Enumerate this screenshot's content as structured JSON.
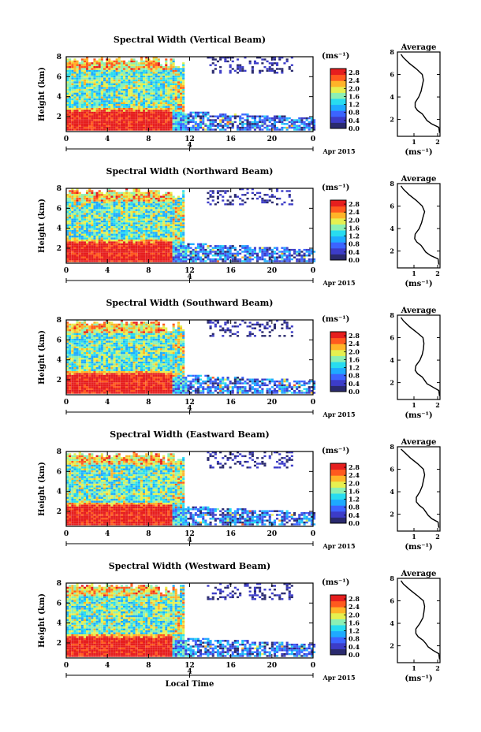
{
  "chart_data": [
    {
      "type": "heatmap",
      "title": "Spectral Width (Vertical Beam)",
      "ylabel": "Height (km)",
      "yticks": [
        "2",
        "4",
        "6",
        "8"
      ],
      "ylim": [
        0.5,
        8
      ],
      "xticks": [
        "0",
        "4",
        "8",
        "12",
        "16",
        "20",
        "0"
      ],
      "xlim": [
        0,
        24
      ],
      "date_tick": "4",
      "date_label": "Apr 2015",
      "colorbar_label": "(ms⁻¹)",
      "colorbar_ticks": [
        "0.0",
        "0.4",
        "0.8",
        "1.2",
        "1.6",
        "2.0",
        "2.4",
        "2.8"
      ],
      "colorbar_range": [
        0.0,
        3.0
      ],
      "colors": [
        "#2a2a6e",
        "#3c3cc8",
        "#3c64ff",
        "#1eaaff",
        "#28dcf0",
        "#8cf0b4",
        "#e6f050",
        "#ffb428",
        "#ff5a1e",
        "#e61e1e"
      ],
      "average_profile": {
        "title": "Average",
        "xlabel": "(ms⁻¹)",
        "xticks": [
          "1",
          "2"
        ],
        "xlim": [
          0.3,
          2.1
        ],
        "yticks": [
          "2",
          "4",
          "6",
          "8"
        ],
        "ylim": [
          0.5,
          8
        ],
        "height": [
          0.8,
          1.3,
          1.6,
          1.9,
          2.2,
          2.5,
          2.8,
          3.1,
          3.5,
          4.0,
          4.5,
          5.0,
          5.5,
          6.0,
          6.5,
          7.0,
          7.5,
          7.8
        ],
        "width": [
          2.08,
          2.05,
          1.75,
          1.55,
          1.45,
          1.35,
          1.15,
          1.05,
          1.05,
          1.2,
          1.3,
          1.35,
          1.4,
          1.35,
          1.1,
          0.8,
          0.55,
          0.45
        ]
      }
    },
    {
      "type": "heatmap",
      "title": "Spectral Width (Northward Beam)",
      "ylabel": "Height (km)",
      "yticks": [
        "2",
        "4",
        "6",
        "8"
      ],
      "ylim": [
        0.5,
        8
      ],
      "xticks": [
        "0",
        "4",
        "8",
        "12",
        "16",
        "20",
        "0"
      ],
      "xlim": [
        0,
        24
      ],
      "date_tick": "4",
      "date_label": "Apr 2015",
      "colorbar_label": "(ms⁻¹)",
      "colorbar_ticks": [
        "0.0",
        "0.4",
        "0.8",
        "1.2",
        "1.6",
        "2.0",
        "2.4",
        "2.8"
      ],
      "colorbar_range": [
        0.0,
        3.0
      ],
      "colors": [
        "#2a2a6e",
        "#3c3cc8",
        "#3c64ff",
        "#1eaaff",
        "#28dcf0",
        "#8cf0b4",
        "#e6f050",
        "#ffb428",
        "#ff5a1e",
        "#e61e1e"
      ],
      "average_profile": {
        "title": "Average",
        "xlabel": "(ms⁻¹)",
        "xticks": [
          "1",
          "2"
        ],
        "xlim": [
          0.3,
          2.1
        ],
        "yticks": [
          "2",
          "4",
          "6",
          "8"
        ],
        "ylim": [
          0.5,
          8
        ],
        "height": [
          0.8,
          1.3,
          1.6,
          1.9,
          2.2,
          2.5,
          2.8,
          3.1,
          3.5,
          4.0,
          4.5,
          5.0,
          5.5,
          6.0,
          6.5,
          7.0,
          7.5,
          7.8
        ],
        "width": [
          2.05,
          2.02,
          1.7,
          1.5,
          1.4,
          1.3,
          1.12,
          1.03,
          1.05,
          1.22,
          1.32,
          1.38,
          1.45,
          1.35,
          1.1,
          0.8,
          0.55,
          0.45
        ]
      }
    },
    {
      "type": "heatmap",
      "title": "Spectral Width (Southward Beam)",
      "ylabel": "Height (km)",
      "yticks": [
        "2",
        "4",
        "6",
        "8"
      ],
      "ylim": [
        0.5,
        8
      ],
      "xticks": [
        "0",
        "4",
        "8",
        "12",
        "16",
        "20",
        "0"
      ],
      "xlim": [
        0,
        24
      ],
      "date_tick": "4",
      "date_label": "Apr 2015",
      "colorbar_label": "(ms⁻¹)",
      "colorbar_ticks": [
        "0.0",
        "0.4",
        "0.8",
        "1.2",
        "1.6",
        "2.0",
        "2.4",
        "2.8"
      ],
      "colorbar_range": [
        0.0,
        3.0
      ],
      "colors": [
        "#2a2a6e",
        "#3c3cc8",
        "#3c64ff",
        "#1eaaff",
        "#28dcf0",
        "#8cf0b4",
        "#e6f050",
        "#ffb428",
        "#ff5a1e",
        "#e61e1e"
      ],
      "average_profile": {
        "title": "Average",
        "xlabel": "(ms⁻¹)",
        "xticks": [
          "1",
          "2"
        ],
        "xlim": [
          0.3,
          2.1
        ],
        "yticks": [
          "2",
          "4",
          "6",
          "8"
        ],
        "ylim": [
          0.5,
          8
        ],
        "height": [
          0.8,
          1.3,
          1.6,
          1.9,
          2.2,
          2.5,
          2.8,
          3.1,
          3.5,
          4.0,
          4.5,
          5.0,
          5.5,
          6.0,
          6.5,
          7.0,
          7.5,
          7.8
        ],
        "width": [
          2.08,
          2.05,
          1.8,
          1.55,
          1.45,
          1.35,
          1.15,
          1.05,
          1.08,
          1.25,
          1.35,
          1.4,
          1.42,
          1.38,
          1.1,
          0.8,
          0.55,
          0.45
        ]
      }
    },
    {
      "type": "heatmap",
      "title": "Spectral Width (Eastward Beam)",
      "ylabel": "Height (km)",
      "yticks": [
        "2",
        "4",
        "6",
        "8"
      ],
      "ylim": [
        0.5,
        8
      ],
      "xticks": [
        "0",
        "4",
        "8",
        "12",
        "16",
        "20",
        "0"
      ],
      "xlim": [
        0,
        24
      ],
      "date_tick": "4",
      "date_label": "Apr 2015",
      "colorbar_label": "(ms⁻¹)",
      "colorbar_ticks": [
        "0.0",
        "0.4",
        "0.8",
        "1.2",
        "1.6",
        "2.0",
        "2.4",
        "2.8"
      ],
      "colorbar_range": [
        0.0,
        3.0
      ],
      "colors": [
        "#2a2a6e",
        "#3c3cc8",
        "#3c64ff",
        "#1eaaff",
        "#28dcf0",
        "#8cf0b4",
        "#e6f050",
        "#ffb428",
        "#ff5a1e",
        "#e61e1e"
      ],
      "average_profile": {
        "title": "Average",
        "xlabel": "(ms⁻¹)",
        "xticks": [
          "1",
          "2"
        ],
        "xlim": [
          0.3,
          2.1
        ],
        "yticks": [
          "2",
          "4",
          "6",
          "8"
        ],
        "ylim": [
          0.5,
          8
        ],
        "height": [
          0.8,
          1.3,
          1.6,
          1.9,
          2.2,
          2.5,
          2.8,
          3.1,
          3.5,
          4.0,
          4.5,
          5.0,
          5.5,
          6.0,
          6.5,
          7.0,
          7.5,
          7.8
        ],
        "width": [
          2.05,
          2.02,
          1.75,
          1.6,
          1.5,
          1.4,
          1.22,
          1.1,
          1.1,
          1.25,
          1.35,
          1.4,
          1.45,
          1.4,
          1.15,
          0.85,
          0.6,
          0.45
        ]
      }
    },
    {
      "type": "heatmap",
      "title": "Spectral Width (Westward Beam)",
      "ylabel": "Height (km)",
      "yticks": [
        "2",
        "4",
        "6",
        "8"
      ],
      "ylim": [
        0.5,
        8
      ],
      "xticks": [
        "0",
        "4",
        "8",
        "12",
        "16",
        "20",
        "0"
      ],
      "xlim": [
        0,
        24
      ],
      "date_tick": "4",
      "date_label": "Apr 2015",
      "xlabel": "Local Time",
      "colorbar_label": "(ms⁻¹)",
      "colorbar_ticks": [
        "0.0",
        "0.4",
        "0.8",
        "1.2",
        "1.6",
        "2.0",
        "2.4",
        "2.8"
      ],
      "colorbar_range": [
        0.0,
        3.0
      ],
      "colors": [
        "#2a2a6e",
        "#3c3cc8",
        "#3c64ff",
        "#1eaaff",
        "#28dcf0",
        "#8cf0b4",
        "#e6f050",
        "#ffb428",
        "#ff5a1e",
        "#e61e1e"
      ],
      "average_profile": {
        "title": "Average",
        "xlabel": "(ms⁻¹)",
        "xticks": [
          "1",
          "2"
        ],
        "xlim": [
          0.3,
          2.1
        ],
        "yticks": [
          "2",
          "4",
          "6",
          "8"
        ],
        "ylim": [
          0.5,
          8
        ],
        "height": [
          0.8,
          1.3,
          1.6,
          1.9,
          2.2,
          2.5,
          2.8,
          3.1,
          3.5,
          4.0,
          4.5,
          5.0,
          5.5,
          6.0,
          6.5,
          7.0,
          7.5,
          7.8
        ],
        "width": [
          2.08,
          2.05,
          1.8,
          1.6,
          1.5,
          1.38,
          1.18,
          1.08,
          1.08,
          1.25,
          1.38,
          1.42,
          1.45,
          1.4,
          1.12,
          0.82,
          0.55,
          0.45
        ]
      }
    }
  ]
}
